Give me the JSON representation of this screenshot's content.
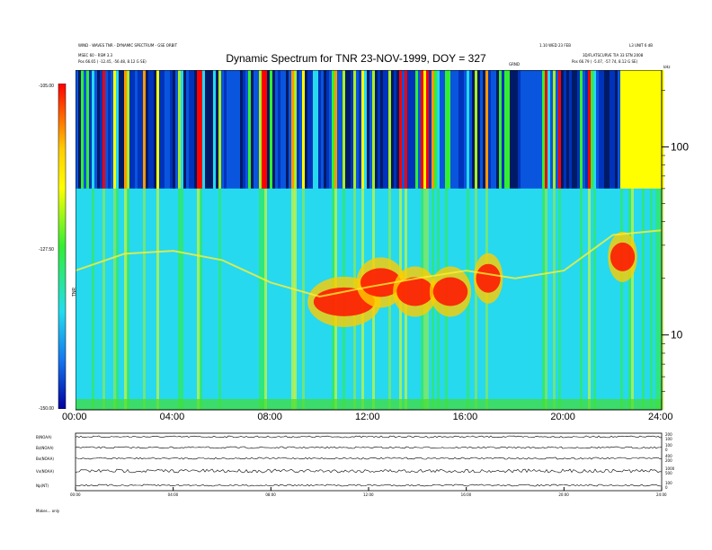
{
  "header": {
    "title": "Dynamic Spectrum for TNR 23-NOV-1999, DOY = 327",
    "left_info": [
      "WIND - WAVES TNR - DYNAMIC SPECTRUM - GSE ORBIT",
      "MSEC 60 - RSM 3.3",
      "Pos  66.65 ( -12.45, -56.48, 8.12 G SE)"
    ],
    "right_info": [
      "1.10 WED 23 FEB",
      "L3 UNIT 6 dB",
      "3D/FLATSCURVE  TIA 33 STN 2008",
      "Pos  66.79 ( -5.07, -57.74, 8.12 G SE)"
    ],
    "center_tag": "GRND"
  },
  "colorbar": {
    "labels": [
      "-105.00",
      "-127.50",
      "-150.00"
    ],
    "axis_label": "TNR",
    "corner_label": "kHz"
  },
  "chart_data": {
    "type": "heatmap",
    "title": "Dynamic Spectrum for TNR 23-NOV-1999, DOY = 327",
    "x_ticks": [
      "00:00",
      "04:00",
      "08:00",
      "12:00",
      "16:00",
      "20:00",
      "24:00"
    ],
    "y_ticks": [
      "100",
      "10"
    ],
    "y_scale": "log",
    "ylim_khz": [
      4,
      256
    ],
    "zlim_db": [
      -150,
      -105
    ],
    "xlim_hours": [
      0,
      24
    ],
    "features": {
      "plasma_line_khz": [
        [
          0,
          22
        ],
        [
          2,
          27
        ],
        [
          4,
          28
        ],
        [
          6,
          25
        ],
        [
          8,
          19
        ],
        [
          10,
          16
        ],
        [
          12,
          18
        ],
        [
          14,
          20
        ],
        [
          16,
          22
        ],
        [
          18,
          20
        ],
        [
          20,
          22
        ],
        [
          22,
          34
        ],
        [
          24,
          36
        ]
      ],
      "intense_bursts": [
        [
          9.5,
          12.5,
          15
        ],
        [
          11.5,
          13.5,
          19
        ],
        [
          13.0,
          14.8,
          17
        ],
        [
          14.5,
          16.2,
          17
        ],
        [
          16.3,
          17.5,
          20
        ],
        [
          21.8,
          23.0,
          26
        ]
      ]
    }
  },
  "panels": {
    "labels": [
      "B(NOAA)",
      "Bz(NOAA)",
      "Bx(NOAA)",
      "Vx(NOAA)",
      "Np(NT)"
    ],
    "right_ticks": [
      [
        "200",
        "100"
      ],
      [
        "100",
        "0"
      ],
      [
        "400",
        "200"
      ],
      [
        "1000",
        "500"
      ],
      [
        "100",
        "0"
      ]
    ],
    "x_ticks": [
      "00:00",
      "04:00",
      "08:00",
      "12:00",
      "16:00",
      "20:00",
      "24:00"
    ],
    "footer": "Makes... only"
  }
}
